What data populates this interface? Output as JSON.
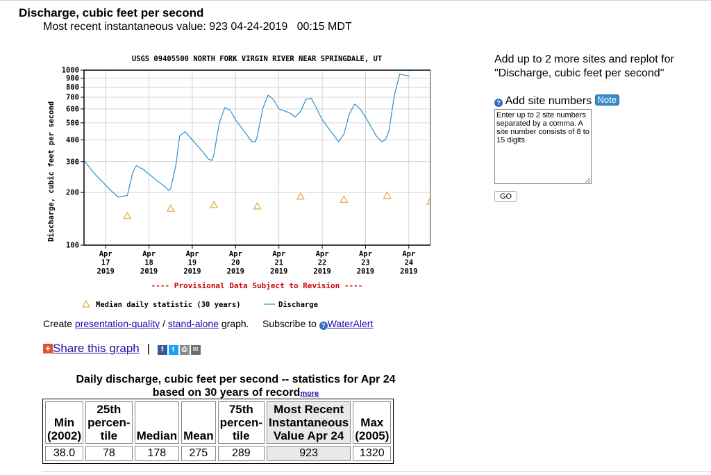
{
  "header": {
    "title": "Discharge, cubic feet per second",
    "subtitle": "Most recent instantaneous value: 923 04-24-2019   00:15 MDT"
  },
  "chart_data": {
    "type": "line",
    "title": "USGS 09405500 NORTH FORK VIRGIN RIVER NEAR SPRINGDALE, UT",
    "ylabel": "Discharge, cubic feet per second",
    "xlabel": "",
    "y_scale": "log",
    "ylim": [
      100,
      1000
    ],
    "y_ticks": [
      "100",
      "200",
      "300",
      "400",
      "500",
      "600",
      "700",
      "800",
      "900",
      "1000"
    ],
    "x_ticks": [
      {
        "month": "Apr",
        "day": "17",
        "year": "2019"
      },
      {
        "month": "Apr",
        "day": "18",
        "year": "2019"
      },
      {
        "month": "Apr",
        "day": "19",
        "year": "2019"
      },
      {
        "month": "Apr",
        "day": "20",
        "year": "2019"
      },
      {
        "month": "Apr",
        "day": "21",
        "year": "2019"
      },
      {
        "month": "Apr",
        "day": "22",
        "year": "2019"
      },
      {
        "month": "Apr",
        "day": "23",
        "year": "2019"
      },
      {
        "month": "Apr",
        "day": "24",
        "year": "2019"
      }
    ],
    "grid": true,
    "provisional_note": "---- Provisional Data Subject to Revision ----",
    "legend": [
      {
        "label": "Median daily statistic (30 years)",
        "marker": "triangle",
        "color": "#e8a33d"
      },
      {
        "label": "Discharge",
        "marker": "line",
        "color": "#2a8fc9"
      }
    ],
    "series": [
      {
        "name": "Discharge",
        "color": "#2a8fc9",
        "x": [
          "2019-04-16 12:00",
          "2019-04-16 18:00",
          "2019-04-17 00:00",
          "2019-04-17 04:00",
          "2019-04-17 07:00",
          "2019-04-17 12:00",
          "2019-04-17 15:00",
          "2019-04-17 17:00",
          "2019-04-17 21:00",
          "2019-04-18 03:00",
          "2019-04-18 09:00",
          "2019-04-18 11:00",
          "2019-04-18 12:00",
          "2019-04-18 15:00",
          "2019-04-18 17:00",
          "2019-04-18 20:00",
          "2019-04-19 00:00",
          "2019-04-19 06:00",
          "2019-04-19 09:00",
          "2019-04-19 11:00",
          "2019-04-19 12:00",
          "2019-04-19 15:00",
          "2019-04-19 18:00",
          "2019-04-19 21:00",
          "2019-04-20 00:00",
          "2019-04-20 06:00",
          "2019-04-20 09:00",
          "2019-04-20 11:00",
          "2019-04-20 12:00",
          "2019-04-20 15:00",
          "2019-04-20 18:00",
          "2019-04-20 21:00",
          "2019-04-21 00:00",
          "2019-04-21 06:00",
          "2019-04-21 09:00",
          "2019-04-21 12:00",
          "2019-04-21 15:00",
          "2019-04-21 18:00",
          "2019-04-21 21:00",
          "2019-04-22 00:00",
          "2019-04-22 06:00",
          "2019-04-22 09:00",
          "2019-04-22 12:00",
          "2019-04-22 15:00",
          "2019-04-22 18:00",
          "2019-04-22 21:00",
          "2019-04-23 00:00",
          "2019-04-23 06:00",
          "2019-04-23 09:00",
          "2019-04-23 11:00",
          "2019-04-23 13:00",
          "2019-04-23 16:00",
          "2019-04-23 19:00",
          "2019-04-24 00:15"
        ],
        "values": [
          305,
          255,
          220,
          200,
          188,
          192,
          260,
          285,
          270,
          240,
          215,
          205,
          210,
          290,
          420,
          445,
          400,
          340,
          310,
          305,
          330,
          500,
          610,
          590,
          520,
          430,
          390,
          390,
          420,
          600,
          720,
          680,
          600,
          570,
          540,
          580,
          680,
          690,
          600,
          520,
          430,
          390,
          430,
          560,
          640,
          600,
          540,
          420,
          390,
          400,
          450,
          720,
          950,
          923
        ]
      },
      {
        "name": "Median daily statistic (30 years)",
        "color": "#e8a33d",
        "x": [
          "2019-04-17",
          "2019-04-18",
          "2019-04-19",
          "2019-04-20",
          "2019-04-21",
          "2019-04-22",
          "2019-04-23",
          "2019-04-24"
        ],
        "values": [
          147,
          162,
          170,
          167,
          190,
          182,
          192,
          178
        ]
      }
    ]
  },
  "links": {
    "create_label": "Create",
    "presentation_link": "presentation-quality",
    "slash": "/",
    "standalone_link": "stand-alone",
    "graph_suffix": "graph.",
    "subscribe_label": "Subscribe to",
    "wateralert_link": "WaterAlert",
    "q_icon": "?"
  },
  "share": {
    "plus_icon": "+",
    "label": "Share this graph",
    "separator": "|",
    "icons": [
      "facebook-icon",
      "twitter-icon",
      "print-icon",
      "email-icon"
    ],
    "fb_glyph": "f",
    "tw_glyph": "t",
    "pr_glyph": "⎙",
    "em_glyph": "✉"
  },
  "stats": {
    "title_line1": "Daily discharge, cubic feet per second -- statistics for Apr 24",
    "title_line2": "based on 30 years of record",
    "more_link": "more",
    "headers": {
      "min": [
        "Min",
        "(2002)"
      ],
      "p25": [
        "25th",
        "percen-",
        "tile"
      ],
      "median": [
        "Median"
      ],
      "mean": [
        "Mean"
      ],
      "p75": [
        "75th",
        "percen-",
        "tile"
      ],
      "recent": [
        "Most Recent",
        "Instantaneous",
        "Value Apr 24"
      ],
      "max": [
        "Max",
        "(2005)"
      ]
    },
    "values": {
      "min": "38.0",
      "p25": "78",
      "median": "178",
      "mean": "275",
      "p75": "289",
      "recent": "923",
      "max": "1320"
    }
  },
  "sidebar": {
    "add_title": "Add up to 2 more sites and replot for \"Discharge, cubic feet per second\"",
    "add_label": "Add site numbers",
    "q_icon": "?",
    "note_badge": "Note",
    "placeholder": "Enter up to 2 site numbers separated by a comma. A site number consists of 8 to 15 digits",
    "go_button": "GO"
  }
}
